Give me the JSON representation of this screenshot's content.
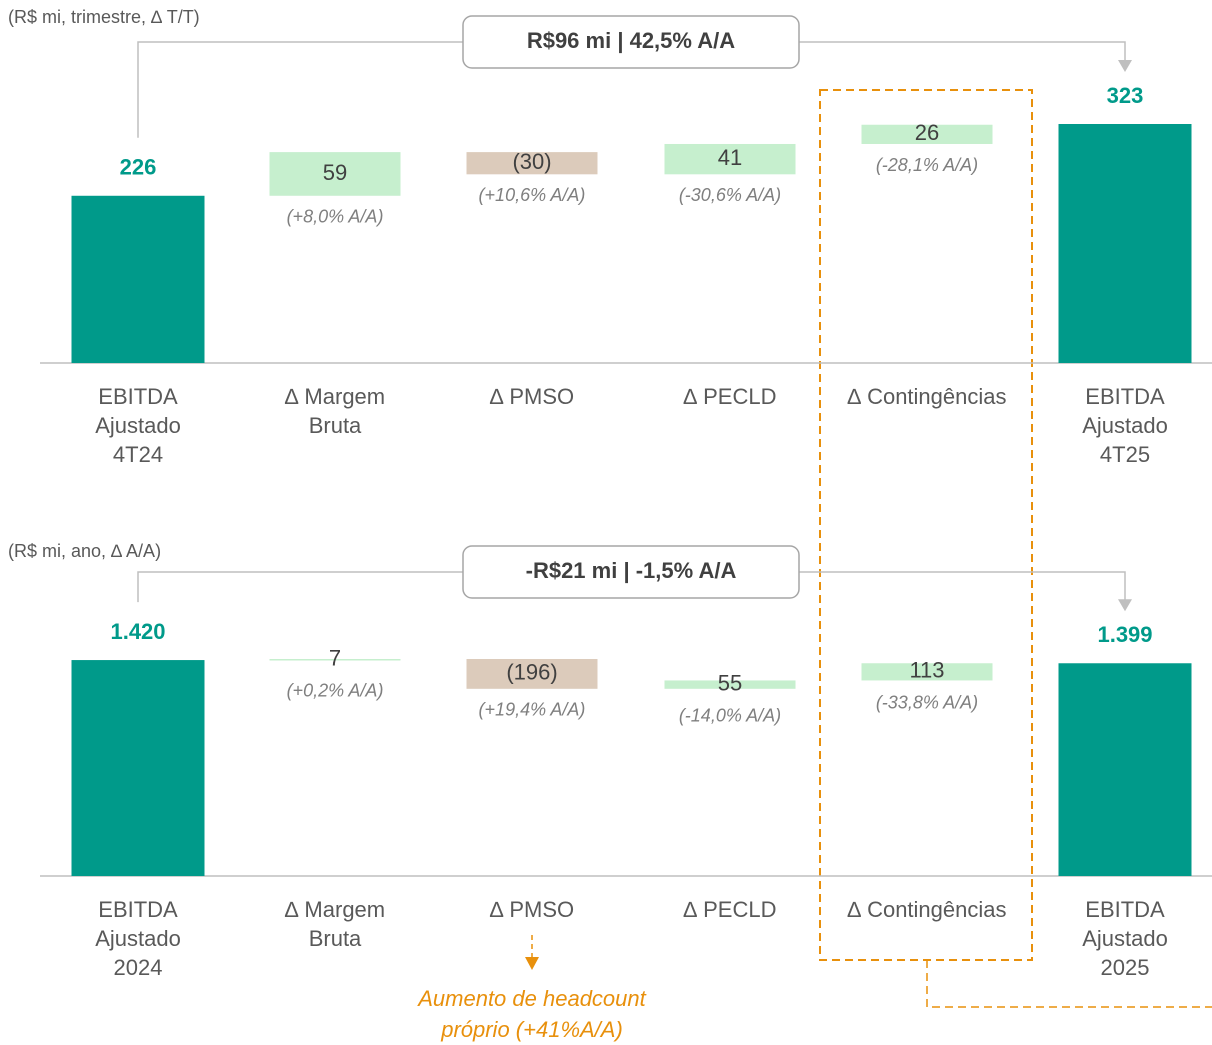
{
  "chart_data": [
    {
      "type": "waterfall",
      "subtitle": "(R$ mi, trimestre, ∆ T/T)",
      "summary": "R$96 mi | 42,5% A/A",
      "categories": [
        "EBITDA\nAjustado\n4T24",
        "∆ Margem\nBruta",
        "∆ PMSO",
        "∆ PECLD",
        "∆ Contingências",
        "EBITDA\nAjustado\n4T25"
      ],
      "measure": [
        "total",
        "relative",
        "relative",
        "relative",
        "relative",
        "total"
      ],
      "values": [
        226,
        59,
        -30,
        41,
        26,
        323
      ],
      "value_labels": [
        "226",
        "59",
        "(30)",
        "41",
        "26",
        "323"
      ],
      "notes": [
        null,
        "(+8,0% A/A)",
        "(+10,6% A/A)",
        "(-30,6% A/A)",
        "(-28,1% A/A)",
        null
      ],
      "colors": {
        "total": "#009a8a",
        "increase": "#c6efce",
        "decrease": "#dccbbb"
      }
    },
    {
      "type": "waterfall",
      "subtitle": "(R$ mi, ano, ∆ A/A)",
      "summary": "-R$21 mi | -1,5% A/A",
      "categories": [
        "EBITDA\nAjustado\n2024",
        "∆ Margem\nBruta",
        "∆ PMSO",
        "∆ PECLD",
        "∆ Contingências",
        "EBITDA\nAjustado\n2025"
      ],
      "measure": [
        "total",
        "relative",
        "relative",
        "relative",
        "relative",
        "total"
      ],
      "values": [
        1420,
        7,
        -196,
        55,
        113,
        1399
      ],
      "value_labels": [
        "1.420",
        "7",
        "(196)",
        "55",
        "113",
        "1.399"
      ],
      "notes": [
        null,
        "(+0,2% A/A)",
        "(+19,4% A/A)",
        "(-14,0% A/A)",
        "(-33,8% A/A)",
        null
      ],
      "colors": {
        "total": "#009a8a",
        "increase": "#c6efce",
        "decrease": "#dccbbb"
      }
    }
  ],
  "annotation": "Aumento de headcount\npróprio (+41%A/A)"
}
